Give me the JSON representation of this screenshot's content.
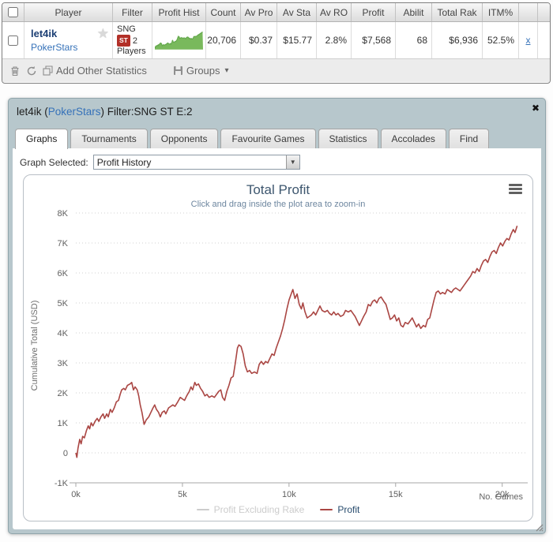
{
  "colors": {
    "link_blue": "#3672b9",
    "player_name_navy": "#1c3f74",
    "st_badge_red": "#b23028",
    "sparkline_green": "#79b95c",
    "panel_bg": "#b7c7cc",
    "profit_line": "#AA4643",
    "chart_title": "#3E576F",
    "chart_subtitle": "#6D869F",
    "legend_profit_text": "#274B6D",
    "legend_disabled": "#CCCCCC"
  },
  "table": {
    "columns": [
      "",
      "Player",
      "Filter",
      "Profit Hist",
      "Count",
      "Av Pro",
      "Av Sta",
      "Av RO",
      "Profit",
      "Abilit",
      "Total Rak",
      "ITM%",
      ""
    ],
    "row": {
      "player_name": "let4ik",
      "star_icon": "★",
      "site": "PokerStars",
      "filter_line1": "SNG",
      "filter_badge": "ST",
      "filter_badge_suffix": "2",
      "filter_line3": "Players",
      "count": "20,706",
      "av_profit": "$0.37",
      "av_stake": "$15.77",
      "av_roi": "2.8%",
      "profit": "$7,568",
      "ability": "68",
      "total_rake": "$6,936",
      "itm": "52.5%",
      "remove_label": "x"
    },
    "toolbar": {
      "add_stats_label": "Add Other Statistics",
      "groups_label": "Groups",
      "groups_caret": "▾"
    }
  },
  "panel": {
    "title_prefix": "let4ik (",
    "title_site": "PokerStars",
    "title_suffix": ") Filter:SNG ST E:2",
    "close_icon": "✖",
    "tabs": [
      {
        "label": "Graphs",
        "active": true
      },
      {
        "label": "Tournaments",
        "active": false
      },
      {
        "label": "Opponents",
        "active": false
      },
      {
        "label": "Favourite Games",
        "active": false
      },
      {
        "label": "Statistics",
        "active": false
      },
      {
        "label": "Accolades",
        "active": false
      },
      {
        "label": "Find",
        "active": false
      }
    ],
    "graph_selected_label": "Graph Selected:",
    "graph_selected_value": "Profit History",
    "select_arrow": "▼"
  },
  "chart_data": {
    "type": "line",
    "title": "Total Profit",
    "subtitle": "Click and drag inside the plot area to zoom-in",
    "xlabel": "No. Games",
    "ylabel": "Cumulative Total (USD)",
    "xlim": [
      0,
      20.9
    ],
    "ylim": [
      -1,
      8
    ],
    "grid": "dotted-horizontal",
    "legend_position": "bottom-center",
    "units": "x in thousands of games, y in thousands of USD",
    "x_ticks": [
      {
        "v": 0,
        "label": "0k"
      },
      {
        "v": 5,
        "label": "5k"
      },
      {
        "v": 10,
        "label": "10k"
      },
      {
        "v": 15,
        "label": "15k"
      },
      {
        "v": 20,
        "label": "20k"
      }
    ],
    "y_ticks": [
      {
        "v": -1,
        "label": "-1K"
      },
      {
        "v": 0,
        "label": "0"
      },
      {
        "v": 1,
        "label": "1K"
      },
      {
        "v": 2,
        "label": "2K"
      },
      {
        "v": 3,
        "label": "3K"
      },
      {
        "v": 4,
        "label": "4K"
      },
      {
        "v": 5,
        "label": "5K"
      },
      {
        "v": 6,
        "label": "6K"
      },
      {
        "v": 7,
        "label": "7K"
      },
      {
        "v": 8,
        "label": "8K"
      }
    ],
    "series": [
      {
        "name": "Profit Excluding Rake",
        "color": "#4572A7",
        "visible": false,
        "points": []
      },
      {
        "name": "Profit",
        "color": "#AA4643",
        "visible": true,
        "points": [
          [
            0,
            0
          ],
          [
            0.05,
            -0.15
          ],
          [
            0.1,
            0.15
          ],
          [
            0.18,
            0.45
          ],
          [
            0.25,
            0.3
          ],
          [
            0.32,
            0.55
          ],
          [
            0.4,
            0.5
          ],
          [
            0.5,
            0.75
          ],
          [
            0.58,
            0.9
          ],
          [
            0.65,
            0.8
          ],
          [
            0.72,
            1.0
          ],
          [
            0.8,
            0.9
          ],
          [
            0.9,
            1.05
          ],
          [
            1.0,
            1.15
          ],
          [
            1.08,
            1.05
          ],
          [
            1.18,
            1.2
          ],
          [
            1.28,
            1.3
          ],
          [
            1.35,
            1.15
          ],
          [
            1.45,
            1.3
          ],
          [
            1.52,
            1.2
          ],
          [
            1.62,
            1.45
          ],
          [
            1.7,
            1.35
          ],
          [
            1.8,
            1.5
          ],
          [
            1.9,
            1.7
          ],
          [
            2.0,
            1.75
          ],
          [
            2.08,
            1.95
          ],
          [
            2.15,
            2.1
          ],
          [
            2.25,
            2.15
          ],
          [
            2.32,
            2.1
          ],
          [
            2.42,
            2.25
          ],
          [
            2.55,
            2.3
          ],
          [
            2.62,
            2.35
          ],
          [
            2.7,
            2.1
          ],
          [
            2.78,
            2.2
          ],
          [
            2.88,
            2.1
          ],
          [
            2.95,
            1.9
          ],
          [
            3.02,
            1.6
          ],
          [
            3.1,
            1.35
          ],
          [
            3.2,
            0.95
          ],
          [
            3.3,
            1.1
          ],
          [
            3.42,
            1.2
          ],
          [
            3.52,
            1.35
          ],
          [
            3.62,
            1.5
          ],
          [
            3.7,
            1.6
          ],
          [
            3.78,
            1.45
          ],
          [
            3.88,
            1.35
          ],
          [
            3.96,
            1.2
          ],
          [
            4.05,
            1.35
          ],
          [
            4.15,
            1.4
          ],
          [
            4.22,
            1.3
          ],
          [
            4.35,
            1.5
          ],
          [
            4.45,
            1.55
          ],
          [
            4.55,
            1.6
          ],
          [
            4.65,
            1.55
          ],
          [
            4.78,
            1.7
          ],
          [
            4.9,
            1.85
          ],
          [
            5.0,
            1.8
          ],
          [
            5.1,
            1.75
          ],
          [
            5.2,
            1.9
          ],
          [
            5.32,
            2.05
          ],
          [
            5.4,
            2.2
          ],
          [
            5.48,
            2.1
          ],
          [
            5.58,
            2.35
          ],
          [
            5.65,
            2.25
          ],
          [
            5.75,
            2.3
          ],
          [
            5.85,
            2.15
          ],
          [
            5.95,
            2.05
          ],
          [
            6.05,
            1.9
          ],
          [
            6.15,
            1.95
          ],
          [
            6.25,
            1.85
          ],
          [
            6.38,
            1.9
          ],
          [
            6.5,
            1.85
          ],
          [
            6.6,
            1.95
          ],
          [
            6.7,
            2.05
          ],
          [
            6.8,
            2.1
          ],
          [
            6.88,
            1.85
          ],
          [
            6.98,
            1.75
          ],
          [
            7.08,
            2.05
          ],
          [
            7.18,
            2.25
          ],
          [
            7.28,
            2.5
          ],
          [
            7.38,
            2.55
          ],
          [
            7.48,
            3.0
          ],
          [
            7.58,
            3.5
          ],
          [
            7.65,
            3.6
          ],
          [
            7.75,
            3.55
          ],
          [
            7.85,
            3.3
          ],
          [
            7.95,
            2.9
          ],
          [
            8.05,
            2.7
          ],
          [
            8.15,
            2.75
          ],
          [
            8.25,
            2.65
          ],
          [
            8.38,
            2.7
          ],
          [
            8.5,
            2.65
          ],
          [
            8.6,
            2.95
          ],
          [
            8.7,
            3.05
          ],
          [
            8.8,
            2.95
          ],
          [
            8.9,
            3.05
          ],
          [
            9.0,
            3.0
          ],
          [
            9.1,
            3.15
          ],
          [
            9.2,
            3.3
          ],
          [
            9.3,
            3.25
          ],
          [
            9.4,
            3.5
          ],
          [
            9.5,
            3.7
          ],
          [
            9.6,
            3.9
          ],
          [
            9.7,
            4.15
          ],
          [
            9.8,
            4.45
          ],
          [
            9.9,
            4.8
          ],
          [
            10.0,
            5.1
          ],
          [
            10.1,
            5.3
          ],
          [
            10.18,
            5.45
          ],
          [
            10.28,
            5.15
          ],
          [
            10.38,
            5.3
          ],
          [
            10.48,
            4.95
          ],
          [
            10.58,
            4.8
          ],
          [
            10.65,
            5.0
          ],
          [
            10.75,
            4.7
          ],
          [
            10.85,
            4.5
          ],
          [
            10.95,
            4.55
          ],
          [
            11.05,
            4.6
          ],
          [
            11.15,
            4.7
          ],
          [
            11.25,
            4.6
          ],
          [
            11.35,
            4.75
          ],
          [
            11.45,
            4.9
          ],
          [
            11.55,
            4.75
          ],
          [
            11.68,
            4.7
          ],
          [
            11.8,
            4.75
          ],
          [
            11.9,
            4.65
          ],
          [
            12.0,
            4.6
          ],
          [
            12.1,
            4.7
          ],
          [
            12.2,
            4.6
          ],
          [
            12.3,
            4.65
          ],
          [
            12.42,
            4.55
          ],
          [
            12.55,
            4.6
          ],
          [
            12.65,
            4.75
          ],
          [
            12.78,
            4.7
          ],
          [
            12.9,
            4.75
          ],
          [
            13.0,
            4.65
          ],
          [
            13.1,
            4.55
          ],
          [
            13.2,
            4.4
          ],
          [
            13.3,
            4.25
          ],
          [
            13.4,
            4.4
          ],
          [
            13.5,
            4.55
          ],
          [
            13.62,
            4.7
          ],
          [
            13.72,
            4.95
          ],
          [
            13.82,
            4.9
          ],
          [
            13.92,
            5.05
          ],
          [
            14.02,
            5.1
          ],
          [
            14.12,
            5.0
          ],
          [
            14.22,
            5.15
          ],
          [
            14.32,
            5.2
          ],
          [
            14.45,
            5.05
          ],
          [
            14.55,
            4.95
          ],
          [
            14.65,
            4.7
          ],
          [
            14.75,
            4.45
          ],
          [
            14.85,
            4.5
          ],
          [
            14.95,
            4.6
          ],
          [
            15.05,
            4.4
          ],
          [
            15.15,
            4.5
          ],
          [
            15.25,
            4.25
          ],
          [
            15.35,
            4.2
          ],
          [
            15.45,
            4.35
          ],
          [
            15.58,
            4.3
          ],
          [
            15.68,
            4.4
          ],
          [
            15.78,
            4.5
          ],
          [
            15.88,
            4.35
          ],
          [
            15.98,
            4.2
          ],
          [
            16.08,
            4.3
          ],
          [
            16.18,
            4.15
          ],
          [
            16.3,
            4.25
          ],
          [
            16.4,
            4.2
          ],
          [
            16.5,
            4.45
          ],
          [
            16.6,
            4.5
          ],
          [
            16.7,
            4.8
          ],
          [
            16.8,
            5.1
          ],
          [
            16.9,
            5.35
          ],
          [
            17.0,
            5.4
          ],
          [
            17.1,
            5.3
          ],
          [
            17.2,
            5.35
          ],
          [
            17.32,
            5.3
          ],
          [
            17.42,
            5.45
          ],
          [
            17.52,
            5.4
          ],
          [
            17.62,
            5.35
          ],
          [
            17.72,
            5.45
          ],
          [
            17.82,
            5.5
          ],
          [
            17.92,
            5.45
          ],
          [
            18.02,
            5.4
          ],
          [
            18.12,
            5.5
          ],
          [
            18.22,
            5.6
          ],
          [
            18.32,
            5.7
          ],
          [
            18.42,
            5.8
          ],
          [
            18.52,
            5.9
          ],
          [
            18.62,
            6.05
          ],
          [
            18.72,
            6.0
          ],
          [
            18.82,
            6.15
          ],
          [
            18.92,
            6.05
          ],
          [
            19.02,
            6.25
          ],
          [
            19.12,
            6.4
          ],
          [
            19.22,
            6.45
          ],
          [
            19.32,
            6.35
          ],
          [
            19.42,
            6.55
          ],
          [
            19.52,
            6.7
          ],
          [
            19.62,
            6.75
          ],
          [
            19.72,
            6.65
          ],
          [
            19.82,
            6.85
          ],
          [
            19.92,
            7.0
          ],
          [
            20.02,
            6.9
          ],
          [
            20.12,
            7.05
          ],
          [
            20.22,
            7.15
          ],
          [
            20.32,
            7.1
          ],
          [
            20.42,
            7.3
          ],
          [
            20.52,
            7.45
          ],
          [
            20.6,
            7.35
          ],
          [
            20.7,
            7.57
          ]
        ]
      }
    ]
  }
}
